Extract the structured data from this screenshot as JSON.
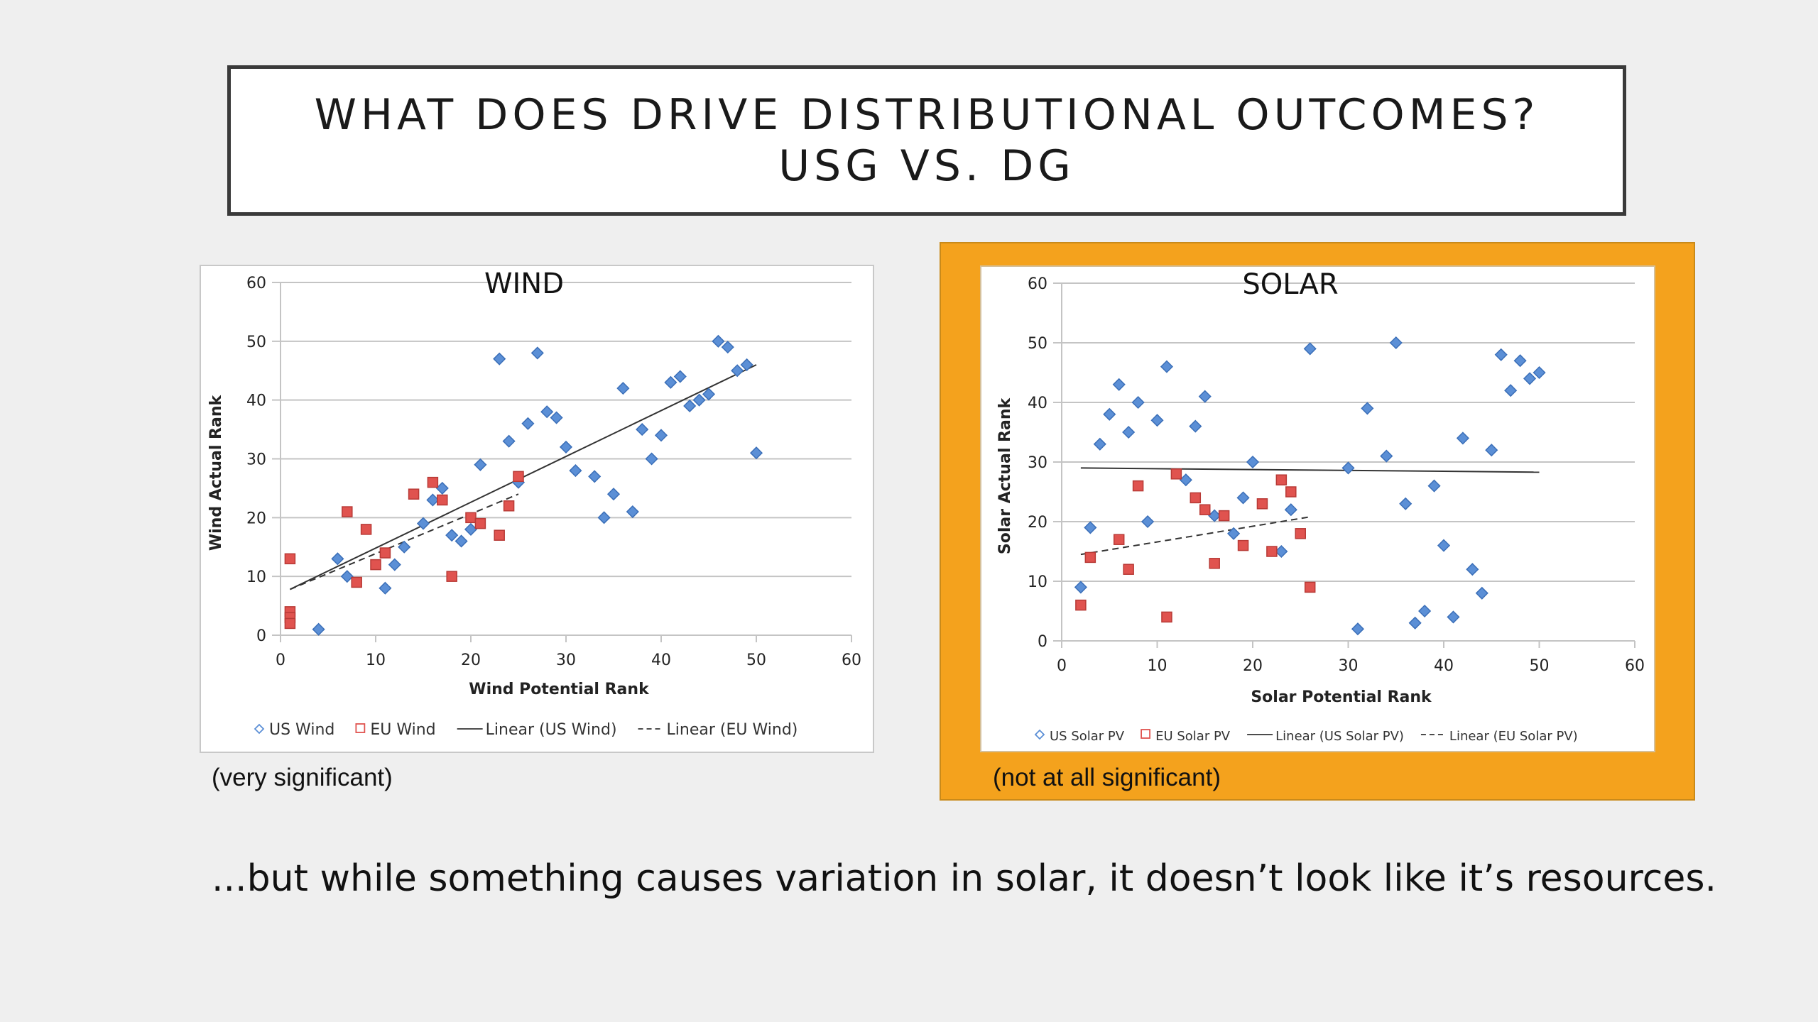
{
  "slide": {
    "title_line1": "WHAT DOES DRIVE DISTRIBUTIONAL OUTCOMES?",
    "title_line2": "USG VS. DG",
    "bottom_text": "...but while something causes variation in solar, it doesn’t look like it’s resources.",
    "highlight_color": "#f4a21d"
  },
  "captions": {
    "wind": "(very significant)",
    "solar": "(not at all significant)"
  },
  "chart_data": [
    {
      "type": "scatter",
      "title": "WIND",
      "xlabel": "Wind Potential Rank",
      "ylabel": "Wind Actual Rank",
      "xlim": [
        0,
        60
      ],
      "ylim": [
        0,
        60
      ],
      "xticks": [
        0,
        10,
        20,
        30,
        40,
        50,
        60
      ],
      "yticks": [
        0,
        10,
        20,
        30,
        40,
        50,
        60
      ],
      "grid": "horizontal",
      "legend_position": "bottom",
      "series": [
        {
          "name": "US Wind",
          "marker": "diamond",
          "color": "#5b8fd6",
          "points": [
            [
              4,
              1
            ],
            [
              6,
              13
            ],
            [
              7,
              10
            ],
            [
              11,
              8
            ],
            [
              12,
              12
            ],
            [
              13,
              15
            ],
            [
              15,
              19
            ],
            [
              16,
              23
            ],
            [
              17,
              25
            ],
            [
              18,
              17
            ],
            [
              19,
              16
            ],
            [
              20,
              18
            ],
            [
              21,
              29
            ],
            [
              23,
              47
            ],
            [
              24,
              33
            ],
            [
              25,
              26
            ],
            [
              26,
              36
            ],
            [
              27,
              48
            ],
            [
              28,
              38
            ],
            [
              29,
              37
            ],
            [
              30,
              32
            ],
            [
              31,
              28
            ],
            [
              33,
              27
            ],
            [
              34,
              20
            ],
            [
              35,
              24
            ],
            [
              36,
              42
            ],
            [
              37,
              21
            ],
            [
              38,
              35
            ],
            [
              39,
              30
            ],
            [
              40,
              34
            ],
            [
              41,
              43
            ],
            [
              42,
              44
            ],
            [
              43,
              39
            ],
            [
              44,
              40
            ],
            [
              45,
              41
            ],
            [
              46,
              50
            ],
            [
              47,
              49
            ],
            [
              48,
              45
            ],
            [
              49,
              46
            ],
            [
              50,
              31
            ]
          ]
        },
        {
          "name": "EU Wind",
          "marker": "square",
          "color": "#e0534f",
          "points": [
            [
              1,
              13
            ],
            [
              1,
              4
            ],
            [
              1,
              3
            ],
            [
              1,
              2
            ],
            [
              7,
              21
            ],
            [
              8,
              9
            ],
            [
              9,
              18
            ],
            [
              10,
              12
            ],
            [
              11,
              14
            ],
            [
              14,
              24
            ],
            [
              16,
              26
            ],
            [
              17,
              23
            ],
            [
              18,
              10
            ],
            [
              20,
              20
            ],
            [
              21,
              19
            ],
            [
              23,
              17
            ],
            [
              24,
              22
            ],
            [
              25,
              27
            ]
          ]
        }
      ],
      "trendlines": [
        {
          "name": "Linear (US Wind)",
          "style": "solid",
          "from": [
            1,
            7.8
          ],
          "to": [
            50,
            46
          ]
        },
        {
          "name": "Linear (EU Wind)",
          "style": "dashed",
          "from": [
            1,
            7.8
          ],
          "to": [
            25,
            24
          ]
        }
      ],
      "legend": [
        "US Wind",
        "EU Wind",
        "Linear (US Wind)",
        "Linear (EU Wind)"
      ]
    },
    {
      "type": "scatter",
      "title": "SOLAR",
      "xlabel": "Solar Potential Rank",
      "ylabel": "Solar Actual Rank",
      "xlim": [
        0,
        60
      ],
      "ylim": [
        0,
        60
      ],
      "xticks": [
        0,
        10,
        20,
        30,
        40,
        50,
        60
      ],
      "yticks": [
        0,
        10,
        20,
        30,
        40,
        50,
        60
      ],
      "grid": "horizontal",
      "legend_position": "bottom",
      "series": [
        {
          "name": "US Solar PV",
          "marker": "diamond",
          "color": "#5b8fd6",
          "points": [
            [
              2,
              9
            ],
            [
              3,
              19
            ],
            [
              4,
              33
            ],
            [
              5,
              38
            ],
            [
              6,
              43
            ],
            [
              7,
              35
            ],
            [
              8,
              40
            ],
            [
              9,
              20
            ],
            [
              10,
              37
            ],
            [
              11,
              46
            ],
            [
              13,
              27
            ],
            [
              14,
              36
            ],
            [
              15,
              41
            ],
            [
              16,
              21
            ],
            [
              18,
              18
            ],
            [
              19,
              24
            ],
            [
              20,
              30
            ],
            [
              23,
              15
            ],
            [
              24,
              22
            ],
            [
              26,
              49
            ],
            [
              30,
              29
            ],
            [
              31,
              2
            ],
            [
              32,
              39
            ],
            [
              34,
              31
            ],
            [
              35,
              50
            ],
            [
              36,
              23
            ],
            [
              37,
              3
            ],
            [
              38,
              5
            ],
            [
              39,
              26
            ],
            [
              40,
              16
            ],
            [
              41,
              4
            ],
            [
              42,
              34
            ],
            [
              43,
              12
            ],
            [
              44,
              8
            ],
            [
              45,
              32
            ],
            [
              46,
              48
            ],
            [
              47,
              42
            ],
            [
              48,
              47
            ],
            [
              49,
              44
            ],
            [
              50,
              45
            ]
          ]
        },
        {
          "name": "EU Solar PV",
          "marker": "square",
          "color": "#e0534f",
          "points": [
            [
              2,
              6
            ],
            [
              3,
              14
            ],
            [
              6,
              17
            ],
            [
              7,
              12
            ],
            [
              8,
              26
            ],
            [
              11,
              4
            ],
            [
              12,
              28
            ],
            [
              14,
              24
            ],
            [
              15,
              22
            ],
            [
              16,
              13
            ],
            [
              17,
              21
            ],
            [
              19,
              16
            ],
            [
              21,
              23
            ],
            [
              22,
              15
            ],
            [
              23,
              27
            ],
            [
              24,
              25
            ],
            [
              25,
              18
            ],
            [
              26,
              9
            ]
          ]
        }
      ],
      "trendlines": [
        {
          "name": "Linear (US Solar PV)",
          "style": "solid",
          "from": [
            2,
            29
          ],
          "to": [
            50,
            28.3
          ]
        },
        {
          "name": "Linear (EU Solar PV)",
          "style": "dashed",
          "from": [
            2,
            14.5
          ],
          "to": [
            26,
            20.8
          ]
        }
      ],
      "legend": [
        "US Solar PV",
        "EU Solar PV",
        "Linear (US Solar PV)",
        "Linear (EU Solar PV)"
      ]
    }
  ]
}
